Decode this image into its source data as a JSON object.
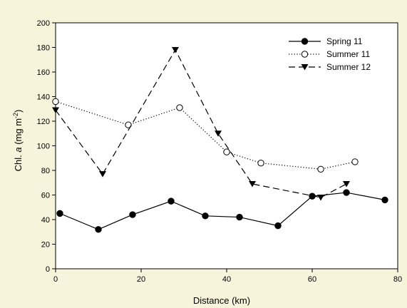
{
  "chart_data": {
    "type": "line",
    "title": "",
    "xlabel": "Distance (km)",
    "ylabel_parts": [
      "Chl. ",
      "a",
      " (mg m",
      "-2",
      ")"
    ],
    "xlim": [
      0,
      80
    ],
    "ylim": [
      0,
      200
    ],
    "xticks": [
      0,
      20,
      40,
      60,
      80
    ],
    "yticks": [
      0,
      20,
      40,
      60,
      80,
      100,
      120,
      140,
      160,
      180,
      200
    ],
    "grid": false,
    "legend_position": "top-right",
    "series": [
      {
        "name": "Spring 11",
        "marker": "filled-circle",
        "line": "solid",
        "x": [
          1,
          10,
          18,
          27,
          35,
          43,
          52,
          60,
          68,
          77
        ],
        "y": [
          45,
          32,
          44,
          55,
          43,
          42,
          35,
          59,
          62,
          56
        ]
      },
      {
        "name": "Summer 11",
        "marker": "open-circle",
        "line": "dotted",
        "x": [
          0,
          17,
          29,
          40,
          48,
          62,
          70
        ],
        "y": [
          136,
          117,
          131,
          95,
          86,
          81,
          87
        ]
      },
      {
        "name": "Summer 12",
        "marker": "filled-triangle-down",
        "line": "dashed",
        "x": [
          0,
          11,
          28,
          38,
          46,
          62,
          68
        ],
        "y": [
          129,
          77,
          178,
          110,
          69,
          58,
          69
        ]
      }
    ]
  }
}
